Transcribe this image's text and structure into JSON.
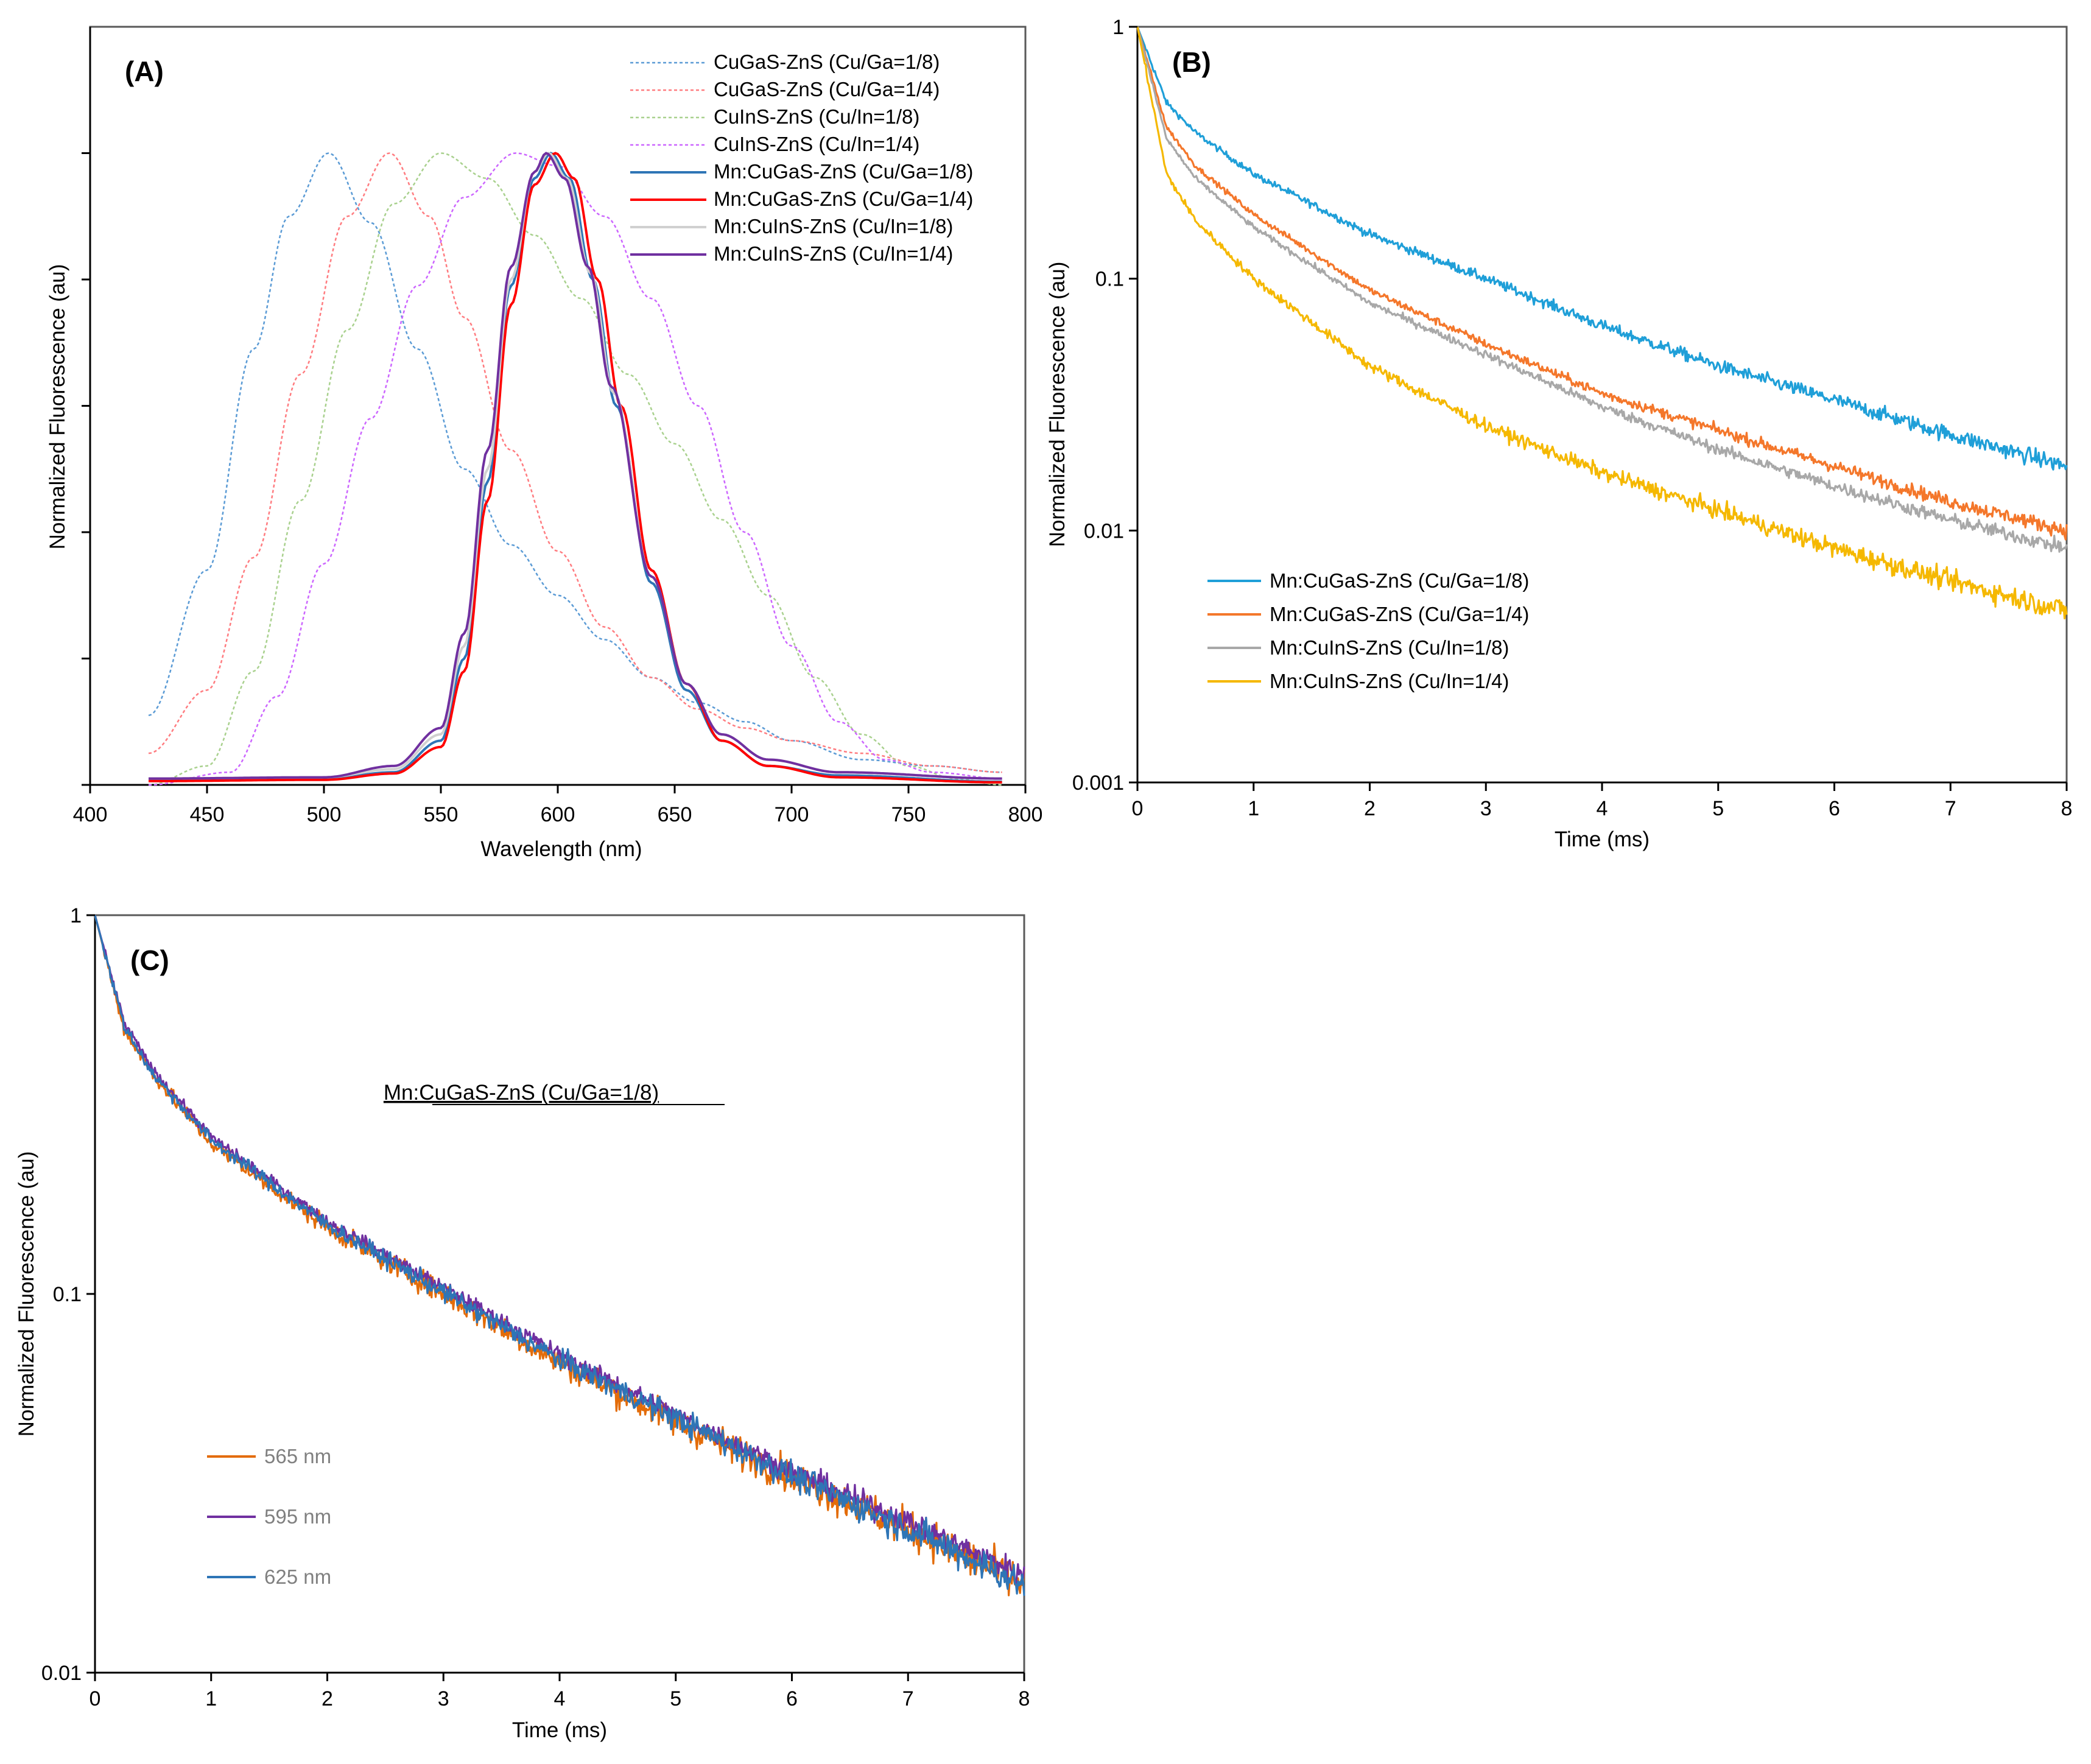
{
  "chart_data": [
    {
      "panel": "A",
      "type": "line",
      "panel_label": "(A)",
      "xlabel": "Wavelength (nm)",
      "ylabel": "Normalized Fluorescence (au)",
      "xlim": [
        400,
        800
      ],
      "ylim": [
        0,
        1.2
      ],
      "x_ticks": [
        400,
        450,
        500,
        550,
        600,
        650,
        700,
        750,
        800
      ],
      "y_ticks": [
        0,
        0.2,
        0.4,
        0.6,
        0.8,
        1.0
      ],
      "y_tick_labels_shown": false,
      "x_range": [
        425,
        790
      ],
      "legend_position": "top-right",
      "series": [
        {
          "name": "CuGaS-ZnS (Cu/Ga=1/8)",
          "color": "#5B9BD5",
          "dashed": true,
          "peak": 502,
          "points": [
            [
              425,
              0.11
            ],
            [
              450,
              0.34
            ],
            [
              470,
              0.69
            ],
            [
              485,
              0.9
            ],
            [
              502,
              1.0
            ],
            [
              520,
              0.89
            ],
            [
              540,
              0.69
            ],
            [
              560,
              0.5
            ],
            [
              580,
              0.38
            ],
            [
              600,
              0.3
            ],
            [
              620,
              0.23
            ],
            [
              640,
              0.17
            ],
            [
              660,
              0.13
            ],
            [
              680,
              0.1
            ],
            [
              700,
              0.07
            ],
            [
              730,
              0.04
            ],
            [
              760,
              0.03
            ],
            [
              790,
              0.02
            ]
          ]
        },
        {
          "name": "CuGaS-ZnS (Cu/Ga=1/4)",
          "color": "#FF7C80",
          "dashed": true,
          "peak": 528,
          "points": [
            [
              425,
              0.05
            ],
            [
              450,
              0.15
            ],
            [
              470,
              0.36
            ],
            [
              490,
              0.65
            ],
            [
              510,
              0.9
            ],
            [
              528,
              1.0
            ],
            [
              545,
              0.9
            ],
            [
              560,
              0.74
            ],
            [
              580,
              0.53
            ],
            [
              600,
              0.37
            ],
            [
              620,
              0.25
            ],
            [
              640,
              0.17
            ],
            [
              660,
              0.12
            ],
            [
              680,
              0.09
            ],
            [
              700,
              0.07
            ],
            [
              730,
              0.05
            ],
            [
              760,
              0.03
            ],
            [
              790,
              0.02
            ]
          ]
        },
        {
          "name": "CuInS-ZnS (Cu/In=1/8)",
          "color": "#A9D18E",
          "dashed": true,
          "peak": 550,
          "points": [
            [
              425,
              0.0
            ],
            [
              450,
              0.03
            ],
            [
              470,
              0.18
            ],
            [
              490,
              0.45
            ],
            [
              510,
              0.72
            ],
            [
              530,
              0.92
            ],
            [
              550,
              1.0
            ],
            [
              570,
              0.96
            ],
            [
              590,
              0.87
            ],
            [
              610,
              0.77
            ],
            [
              630,
              0.65
            ],
            [
              650,
              0.54
            ],
            [
              670,
              0.42
            ],
            [
              690,
              0.3
            ],
            [
              710,
              0.17
            ],
            [
              730,
              0.08
            ],
            [
              750,
              0.03
            ],
            [
              770,
              0.01
            ],
            [
              790,
              0.0
            ]
          ]
        },
        {
          "name": "CuInS-ZnS (Cu/In=1/4)",
          "color": "#CC66FF",
          "dashed": true,
          "peak": 582,
          "points": [
            [
              425,
              0.0
            ],
            [
              460,
              0.02
            ],
            [
              480,
              0.14
            ],
            [
              500,
              0.35
            ],
            [
              520,
              0.58
            ],
            [
              540,
              0.79
            ],
            [
              560,
              0.93
            ],
            [
              582,
              1.0
            ],
            [
              600,
              0.98
            ],
            [
              620,
              0.9
            ],
            [
              640,
              0.77
            ],
            [
              660,
              0.6
            ],
            [
              680,
              0.4
            ],
            [
              700,
              0.22
            ],
            [
              720,
              0.1
            ],
            [
              740,
              0.04
            ],
            [
              760,
              0.02
            ],
            [
              790,
              0.01
            ]
          ]
        },
        {
          "name": "Mn:CuGaS-ZnS (Cu/Ga=1/8)",
          "color": "#2E75B6",
          "dashed": false,
          "peak": 597,
          "points": [
            [
              425,
              0.008
            ],
            [
              500,
              0.01
            ],
            [
              530,
              0.02
            ],
            [
              550,
              0.07
            ],
            [
              560,
              0.2
            ],
            [
              570,
              0.48
            ],
            [
              580,
              0.79
            ],
            [
              590,
              0.96
            ],
            [
              597,
              1.0
            ],
            [
              605,
              0.96
            ],
            [
              615,
              0.8
            ],
            [
              625,
              0.6
            ],
            [
              640,
              0.32
            ],
            [
              655,
              0.15
            ],
            [
              670,
              0.07
            ],
            [
              690,
              0.03
            ],
            [
              720,
              0.015
            ],
            [
              790,
              0.005
            ]
          ]
        },
        {
          "name": "Mn:CuGaS-ZnS (Cu/Ga=1/4)",
          "color": "#FF0000",
          "dashed": false,
          "peak": 599,
          "points": [
            [
              425,
              0.006
            ],
            [
              500,
              0.008
            ],
            [
              530,
              0.018
            ],
            [
              550,
              0.06
            ],
            [
              560,
              0.18
            ],
            [
              570,
              0.45
            ],
            [
              580,
              0.76
            ],
            [
              590,
              0.95
            ],
            [
              599,
              1.0
            ],
            [
              607,
              0.96
            ],
            [
              617,
              0.8
            ],
            [
              627,
              0.6
            ],
            [
              640,
              0.34
            ],
            [
              655,
              0.16
            ],
            [
              670,
              0.07
            ],
            [
              690,
              0.03
            ],
            [
              720,
              0.012
            ],
            [
              790,
              0.004
            ]
          ]
        },
        {
          "name": "Mn:CuInS-ZnS (Cu/In=1/8)",
          "color": "#D0D0D0",
          "dashed": false,
          "peak": 596,
          "points": [
            [
              425,
              0.01
            ],
            [
              500,
              0.012
            ],
            [
              530,
              0.025
            ],
            [
              550,
              0.08
            ],
            [
              560,
              0.22
            ],
            [
              570,
              0.5
            ],
            [
              580,
              0.8
            ],
            [
              590,
              0.97
            ],
            [
              596,
              1.0
            ],
            [
              604,
              0.96
            ],
            [
              614,
              0.81
            ],
            [
              624,
              0.62
            ],
            [
              640,
              0.33
            ],
            [
              655,
              0.16
            ],
            [
              670,
              0.08
            ],
            [
              690,
              0.04
            ],
            [
              720,
              0.02
            ],
            [
              790,
              0.01
            ]
          ]
        },
        {
          "name": "Mn:CuInS-ZnS (Cu/In=1/4)",
          "color": "#7030A0",
          "dashed": false,
          "peak": 595,
          "points": [
            [
              425,
              0.01
            ],
            [
              500,
              0.012
            ],
            [
              530,
              0.03
            ],
            [
              550,
              0.09
            ],
            [
              560,
              0.24
            ],
            [
              570,
              0.53
            ],
            [
              580,
              0.82
            ],
            [
              590,
              0.97
            ],
            [
              595,
              1.0
            ],
            [
              603,
              0.96
            ],
            [
              613,
              0.82
            ],
            [
              623,
              0.63
            ],
            [
              640,
              0.33
            ],
            [
              655,
              0.16
            ],
            [
              670,
              0.08
            ],
            [
              690,
              0.04
            ],
            [
              720,
              0.02
            ],
            [
              790,
              0.01
            ]
          ]
        }
      ]
    },
    {
      "panel": "B",
      "type": "line",
      "panel_label": "(B)",
      "xlabel": "Time (ms)",
      "ylabel": "Normalized Fluorescence (au)",
      "xscale": "linear",
      "yscale": "log",
      "xlim": [
        0,
        8
      ],
      "ylim": [
        0.001,
        1
      ],
      "x_ticks": [
        0,
        1,
        2,
        3,
        4,
        5,
        6,
        7,
        8
      ],
      "y_ticks": [
        0.001,
        0.01,
        0.1,
        1
      ],
      "y_tick_labels": [
        "0.001",
        "0.01",
        "0.1",
        "1"
      ],
      "legend_position": "bottom-left",
      "series": [
        {
          "name": "Mn:CuGaS-ZnS (Cu/Ga=1/8)",
          "color": "#1F9FD8",
          "noise": 0.035,
          "points": [
            [
              0,
              1.0
            ],
            [
              0.25,
              0.5
            ],
            [
              0.5,
              0.38
            ],
            [
              1,
              0.26
            ],
            [
              2,
              0.15
            ],
            [
              3,
              0.1
            ],
            [
              4,
              0.065
            ],
            [
              5,
              0.045
            ],
            [
              6,
              0.033
            ],
            [
              7,
              0.024
            ],
            [
              8,
              0.018
            ]
          ]
        },
        {
          "name": "Mn:CuGaS-ZnS (Cu/Ga=1/4)",
          "color": "#F4772B",
          "noise": 0.03,
          "points": [
            [
              0,
              1.0
            ],
            [
              0.25,
              0.4
            ],
            [
              0.5,
              0.28
            ],
            [
              1,
              0.18
            ],
            [
              2,
              0.09
            ],
            [
              3,
              0.055
            ],
            [
              4,
              0.035
            ],
            [
              5,
              0.025
            ],
            [
              6,
              0.018
            ],
            [
              7,
              0.013
            ],
            [
              8,
              0.01
            ]
          ]
        },
        {
          "name": "Mn:CuInS-ZnS (Cu/In=1/8)",
          "color": "#A8A8A8",
          "noise": 0.03,
          "points": [
            [
              0,
              1.0
            ],
            [
              0.25,
              0.36
            ],
            [
              0.5,
              0.25
            ],
            [
              1,
              0.16
            ],
            [
              2,
              0.08
            ],
            [
              3,
              0.05
            ],
            [
              4,
              0.031
            ],
            [
              5,
              0.021
            ],
            [
              6,
              0.015
            ],
            [
              7,
              0.011
            ],
            [
              8,
              0.0085
            ]
          ]
        },
        {
          "name": "Mn:CuInS-ZnS (Cu/In=1/4)",
          "color": "#F5B800",
          "noise": 0.045,
          "points": [
            [
              0,
              1.0
            ],
            [
              0.25,
              0.26
            ],
            [
              0.5,
              0.17
            ],
            [
              1,
              0.1
            ],
            [
              2,
              0.045
            ],
            [
              3,
              0.026
            ],
            [
              4,
              0.017
            ],
            [
              5,
              0.012
            ],
            [
              6,
              0.0085
            ],
            [
              7,
              0.0063
            ],
            [
              8,
              0.0048
            ]
          ]
        }
      ]
    },
    {
      "panel": "C",
      "type": "line",
      "panel_label": "(C)",
      "annotation": "Mn:CuGaS-ZnS (Cu/Ga=1/8)",
      "xlabel": "Time (ms)",
      "ylabel": "Normalized Fluorescence (au)",
      "xscale": "linear",
      "yscale": "log",
      "xlim": [
        0,
        8
      ],
      "ylim": [
        0.01,
        1
      ],
      "x_ticks": [
        0,
        1,
        2,
        3,
        4,
        5,
        6,
        7,
        8
      ],
      "y_ticks": [
        0.01,
        0.1,
        1
      ],
      "y_tick_labels": [
        "0.01",
        "0.1",
        "1"
      ],
      "legend_position": "bottom-left",
      "series": [
        {
          "name": "565 nm",
          "color": "#E36C09",
          "noise": 0.055,
          "points": [
            [
              0,
              1.0
            ],
            [
              0.25,
              0.5
            ],
            [
              0.5,
              0.38
            ],
            [
              1,
              0.25
            ],
            [
              2,
              0.15
            ],
            [
              3,
              0.1
            ],
            [
              4,
              0.066
            ],
            [
              5,
              0.046
            ],
            [
              6,
              0.033
            ],
            [
              7,
              0.024
            ],
            [
              8,
              0.017
            ]
          ]
        },
        {
          "name": "595 nm",
          "color": "#7030A0",
          "noise": 0.035,
          "points": [
            [
              0,
              1.0
            ],
            [
              0.25,
              0.52
            ],
            [
              0.5,
              0.39
            ],
            [
              1,
              0.26
            ],
            [
              2,
              0.155
            ],
            [
              3,
              0.104
            ],
            [
              4,
              0.069
            ],
            [
              5,
              0.048
            ],
            [
              6,
              0.034
            ],
            [
              7,
              0.025
            ],
            [
              8,
              0.018
            ]
          ]
        },
        {
          "name": "625 nm",
          "color": "#2E75B6",
          "noise": 0.045,
          "points": [
            [
              0,
              1.0
            ],
            [
              0.25,
              0.51
            ],
            [
              0.5,
              0.38
            ],
            [
              1,
              0.255
            ],
            [
              2,
              0.152
            ],
            [
              3,
              0.101
            ],
            [
              4,
              0.067
            ],
            [
              5,
              0.047
            ],
            [
              6,
              0.033
            ],
            [
              7,
              0.024
            ],
            [
              8,
              0.017
            ]
          ]
        }
      ]
    }
  ]
}
